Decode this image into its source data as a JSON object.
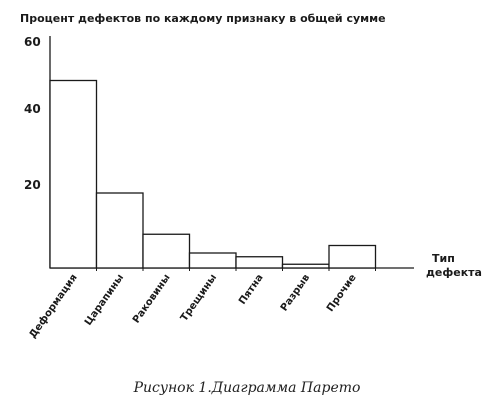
{
  "chart_data": {
    "type": "bar",
    "title": "Процент дефектов по каждому признаку в общей сумме",
    "xlabel": [
      "Тип",
      "дефекта"
    ],
    "ylabel": "",
    "categories": [
      "Деформация",
      "Царапины",
      "Раковины",
      "Трещины",
      "Пятна",
      "Разрыв",
      "Прочие"
    ],
    "values": [
      50,
      20,
      9,
      4,
      3,
      1,
      6
    ],
    "ylim": [
      0,
      60
    ],
    "yticks": [
      "20",
      "40",
      "60"
    ],
    "grid": false,
    "legend": "none",
    "bar_fill": "#ffffff",
    "bar_stroke": "#1a1a1a"
  },
  "caption": "Рисунок 1.Диаграмма Парето"
}
